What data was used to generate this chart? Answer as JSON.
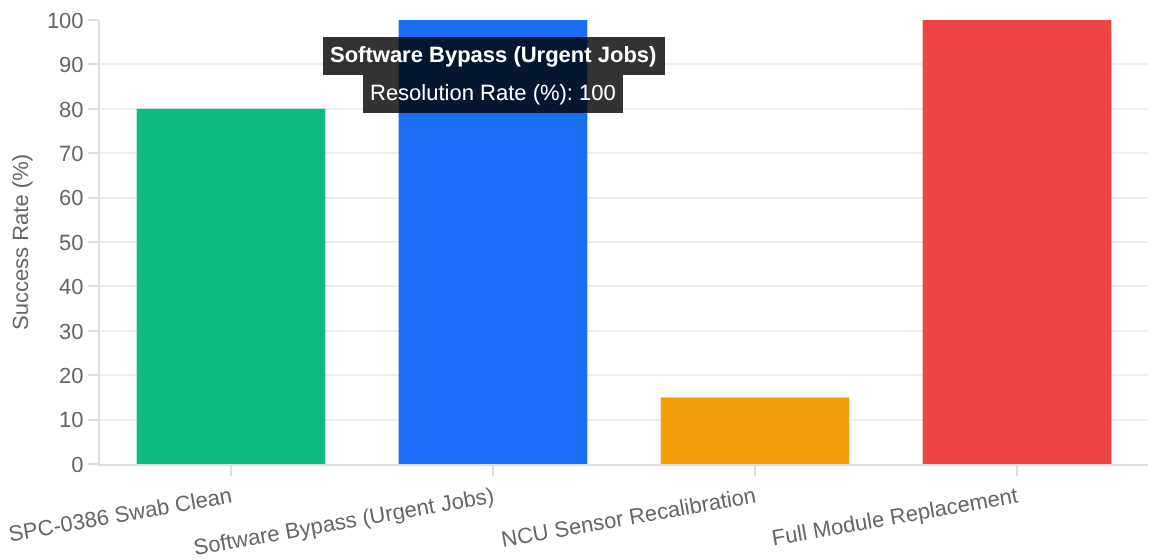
{
  "chart_data": {
    "type": "bar",
    "ylabel": "Success Rate (%)",
    "categories": [
      "SPC-0386 Swab Clean",
      "Software Bypass (Urgent Jobs)",
      "NCU Sensor Recalibration",
      "Full Module Replacement"
    ],
    "values": [
      80,
      100,
      15,
      100
    ],
    "colors": [
      "#10b981",
      "#1a6ef5",
      "#f59e0b",
      "#ef4444"
    ],
    "ylim": [
      0,
      100
    ],
    "yticks": [
      0,
      10,
      20,
      30,
      40,
      50,
      60,
      70,
      80,
      90,
      100
    ],
    "grid": "y",
    "annotations": [
      "Software Bypass (Urgent Jobs)",
      "Resolution Rate (%): 100"
    ]
  }
}
